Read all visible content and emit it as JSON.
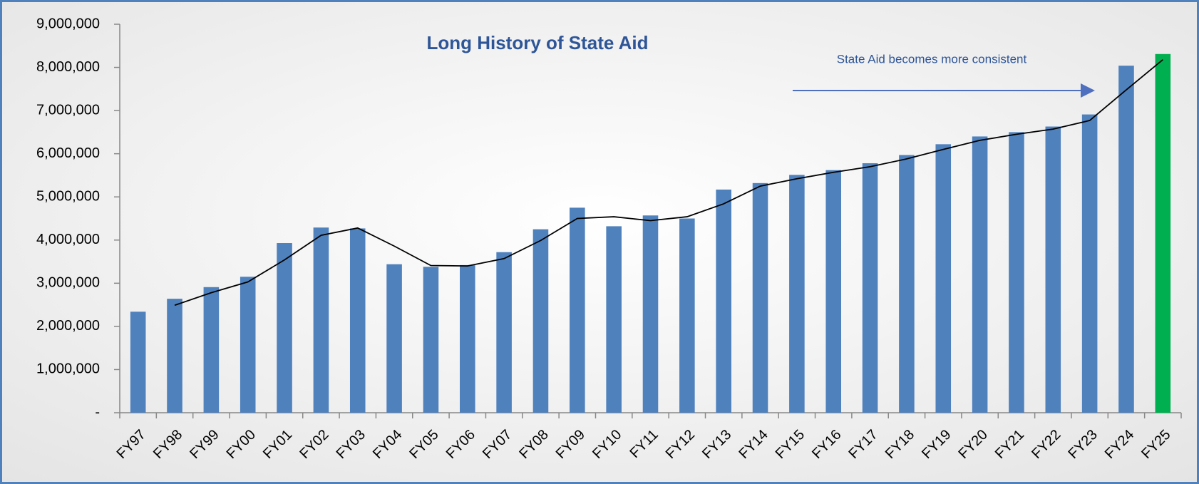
{
  "chart_data": {
    "type": "bar",
    "title": "Long History of State Aid",
    "annotation": "State Aid becomes more consistent",
    "categories": [
      "FY97",
      "FY98",
      "FY99",
      "FY00",
      "FY01",
      "FY02",
      "FY03",
      "FY04",
      "FY05",
      "FY06",
      "FY07",
      "FY08",
      "FY09",
      "FY10",
      "FY11",
      "FY12",
      "FY13",
      "FY14",
      "FY15",
      "FY16",
      "FY17",
      "FY18",
      "FY19",
      "FY20",
      "FY21",
      "FY22",
      "FY23",
      "FY24",
      "FY25"
    ],
    "series": [
      {
        "type": "bar",
        "colors": [
          "#4f81bd",
          "#4f81bd",
          "#4f81bd",
          "#4f81bd",
          "#4f81bd",
          "#4f81bd",
          "#4f81bd",
          "#4f81bd",
          "#4f81bd",
          "#4f81bd",
          "#4f81bd",
          "#4f81bd",
          "#4f81bd",
          "#4f81bd",
          "#4f81bd",
          "#4f81bd",
          "#4f81bd",
          "#4f81bd",
          "#4f81bd",
          "#4f81bd",
          "#4f81bd",
          "#4f81bd",
          "#4f81bd",
          "#4f81bd",
          "#4f81bd",
          "#4f81bd",
          "#4f81bd",
          "#4f81bd",
          "#00b050"
        ],
        "values": [
          2340000,
          2640000,
          2910000,
          3150000,
          3930000,
          4290000,
          4270000,
          3440000,
          3380000,
          3420000,
          3720000,
          4250000,
          4750000,
          4320000,
          4570000,
          4500000,
          5170000,
          5320000,
          5510000,
          5620000,
          5780000,
          5970000,
          6220000,
          6400000,
          6500000,
          6630000,
          6910000,
          8040000,
          8310000
        ]
      },
      {
        "type": "line",
        "color": "#000000",
        "values": [
          null,
          2490000,
          2780000,
          3030000,
          3540000,
          4110000,
          4280000,
          3860000,
          3410000,
          3400000,
          3570000,
          3990000,
          4500000,
          4540000,
          4450000,
          4540000,
          4840000,
          5250000,
          5420000,
          5570000,
          5700000,
          5880000,
          6100000,
          6310000,
          6450000,
          6570000,
          6770000,
          7480000,
          8180000
        ]
      }
    ],
    "ylim": [
      0,
      9000000
    ],
    "yticks": [
      {
        "value": 0,
        "label": "-"
      },
      {
        "value": 1000000,
        "label": "1,000,000"
      },
      {
        "value": 2000000,
        "label": "2,000,000"
      },
      {
        "value": 3000000,
        "label": "3,000,000"
      },
      {
        "value": 4000000,
        "label": "4,000,000"
      },
      {
        "value": 5000000,
        "label": "5,000,000"
      },
      {
        "value": 6000000,
        "label": "6,000,000"
      },
      {
        "value": 7000000,
        "label": "7,000,000"
      },
      {
        "value": 8000000,
        "label": "8,000,000"
      },
      {
        "value": 9000000,
        "label": "9,000,000"
      }
    ],
    "grid": false
  }
}
